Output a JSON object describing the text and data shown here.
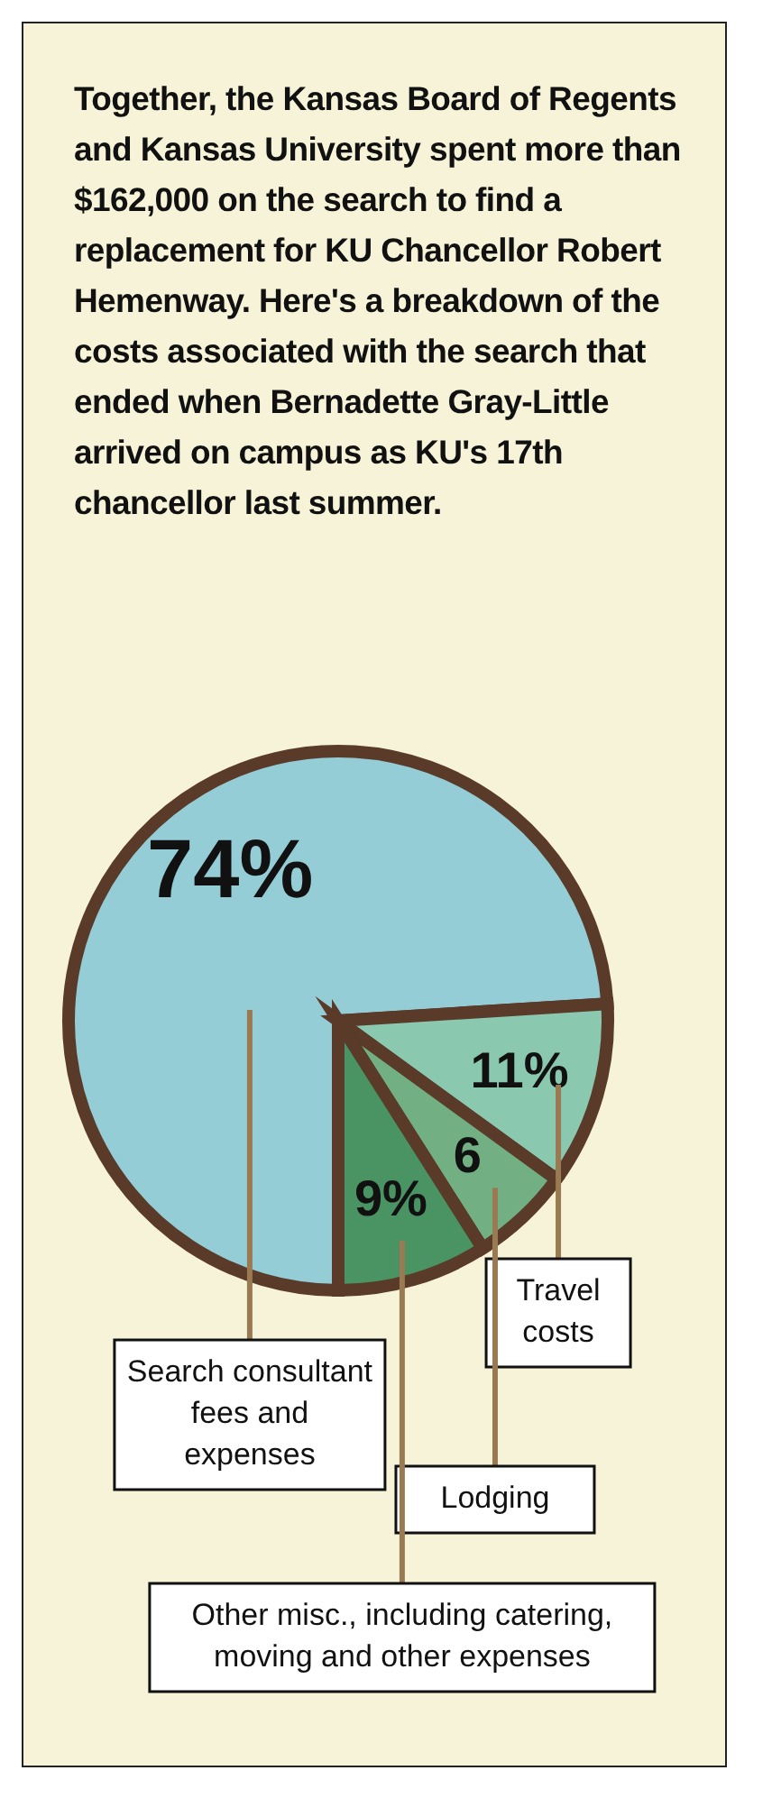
{
  "chart_data": {
    "type": "pie",
    "title": "Together, the Kansas Board of Regents and Kansas University spent more than $162,000 on the search to find a replacement for KU Chancellor Robert Hemenway. Here's a breakdown of the costs associated with the search that ended when Bernadette Gray-Little arrived on campus as KU's 17th chancellor last summer.",
    "categories": [
      "Search consultant fees and expenses",
      "Travel costs",
      "Lodging",
      "Other misc., including catering, moving and other expenses"
    ],
    "values": [
      74,
      11,
      6,
      9
    ],
    "value_labels": [
      "74%",
      "11%",
      "6",
      "9%"
    ],
    "colors": [
      "#94cdd6",
      "#8ac8b0",
      "#72b084",
      "#4a9463"
    ]
  }
}
